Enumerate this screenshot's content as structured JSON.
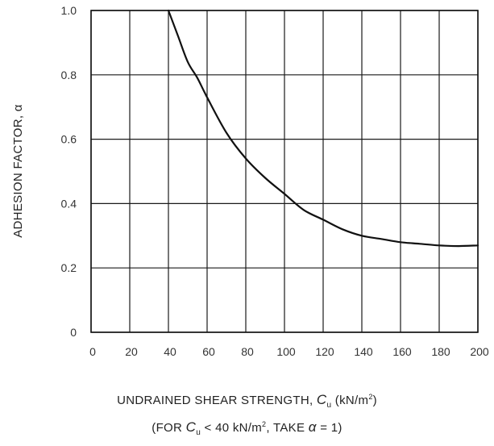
{
  "chart_data": {
    "type": "line",
    "ylabel": "ADHESION FACTOR, α",
    "xlabel_parts": {
      "prefix": "UNDRAINED SHEAR STRENGTH, ",
      "symbol": "C",
      "subscript": "u",
      "units": " (kN/m",
      "exponent": "2",
      "close": ")"
    },
    "note_parts": {
      "open": "(FOR ",
      "symbol": "C",
      "subscript": "u",
      "middle": " < 40 kN/m",
      "exponent": "2",
      "take": ",  TAKE ",
      "alpha": "α",
      "end": " = 1)"
    },
    "xlim": [
      0,
      200
    ],
    "ylim": [
      0,
      1.0
    ],
    "x_ticks": [
      0,
      20,
      40,
      60,
      80,
      100,
      120,
      140,
      160,
      180,
      200
    ],
    "y_ticks": [
      {
        "value": 0,
        "label": "0"
      },
      {
        "value": 0.2,
        "label": "0.2"
      },
      {
        "value": 0.4,
        "label": "0.4"
      },
      {
        "value": 0.6,
        "label": "0.6"
      },
      {
        "value": 0.8,
        "label": "0.8"
      },
      {
        "value": 1.0,
        "label": "1.0"
      }
    ],
    "grid": true,
    "series": [
      {
        "x": [
          40,
          45,
          50,
          55,
          60,
          70,
          80,
          90,
          100,
          110,
          120,
          130,
          140,
          150,
          160,
          170,
          180,
          190,
          200
        ],
        "y": [
          1.0,
          0.92,
          0.84,
          0.79,
          0.73,
          0.62,
          0.54,
          0.48,
          0.43,
          0.38,
          0.35,
          0.32,
          0.3,
          0.29,
          0.28,
          0.275,
          0.27,
          0.268,
          0.27
        ],
        "color": "#111111"
      }
    ]
  }
}
